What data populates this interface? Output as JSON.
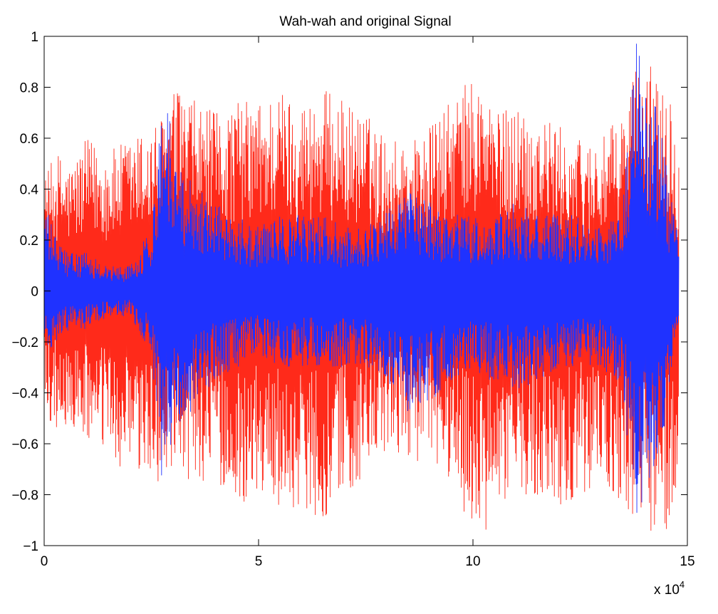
{
  "chart_data": {
    "type": "line",
    "title": "Wah-wah and original Signal",
    "xlabel": "",
    "ylabel": "",
    "x_multiplier_label": "x 10",
    "x_multiplier_exponent": "4",
    "xlim": [
      0,
      15
    ],
    "ylim": [
      -1,
      1
    ],
    "x_ticks": [
      0,
      5,
      10,
      15
    ],
    "x_tick_labels": [
      "0",
      "5",
      "10",
      "15"
    ],
    "y_ticks": [
      1,
      0.8,
      0.6,
      0.4,
      0.2,
      0,
      -0.2,
      -0.4,
      -0.6,
      -0.8,
      -1
    ],
    "y_tick_labels": [
      "1",
      "0.8",
      "0.6",
      "0.4",
      "0.2",
      "0",
      "−0.2",
      "−0.4",
      "−0.6",
      "−0.8",
      "−1"
    ],
    "grid": false,
    "legend": "none",
    "x_data_end": 14.8,
    "series": [
      {
        "color": "#ff2a1a",
        "envelope_x": [
          0,
          0.3,
          0.6,
          1.0,
          1.5,
          2.0,
          2.5,
          2.8,
          3.0,
          3.5,
          4.0,
          4.5,
          5.0,
          5.5,
          6.0,
          6.5,
          7.0,
          7.5,
          8.0,
          8.5,
          9.0,
          9.5,
          10.0,
          10.3,
          10.6,
          11.0,
          11.5,
          12.0,
          12.5,
          13.0,
          13.5,
          13.8,
          14.0,
          14.3,
          14.5,
          14.8
        ],
        "envelope_max": [
          0.45,
          0.55,
          0.5,
          0.6,
          0.55,
          0.6,
          0.65,
          0.7,
          0.8,
          0.75,
          0.7,
          0.75,
          0.75,
          0.8,
          0.75,
          0.8,
          0.75,
          0.7,
          0.6,
          0.6,
          0.65,
          0.75,
          0.85,
          0.8,
          0.7,
          0.75,
          0.7,
          0.65,
          0.6,
          0.6,
          0.7,
          0.9,
          0.85,
          0.95,
          0.9,
          0.55
        ],
        "envelope_min": [
          -0.5,
          -0.55,
          -0.55,
          -0.6,
          -0.65,
          -0.75,
          -0.75,
          -0.75,
          -0.8,
          -0.75,
          -0.75,
          -0.85,
          -0.8,
          -0.85,
          -0.85,
          -0.9,
          -0.8,
          -0.75,
          -0.65,
          -0.65,
          -0.7,
          -0.75,
          -0.95,
          -1.0,
          -0.85,
          -0.8,
          -0.8,
          -0.85,
          -0.8,
          -0.75,
          -0.85,
          -0.95,
          -0.9,
          -1.0,
          -0.95,
          -0.75
        ]
      },
      {
        "color": "#1f32ff",
        "envelope_x": [
          0,
          0.3,
          0.6,
          1.0,
          1.5,
          2.0,
          2.5,
          2.8,
          3.0,
          3.5,
          4.0,
          4.5,
          5.0,
          5.5,
          6.0,
          6.5,
          7.0,
          7.5,
          8.0,
          8.5,
          9.0,
          9.5,
          10.0,
          10.3,
          10.6,
          11.0,
          11.5,
          12.0,
          12.5,
          13.0,
          13.5,
          13.8,
          14.0,
          14.3,
          14.5,
          14.8
        ],
        "envelope_max": [
          0.35,
          0.2,
          0.15,
          0.15,
          0.1,
          0.1,
          0.25,
          0.9,
          0.55,
          0.45,
          0.35,
          0.3,
          0.25,
          0.3,
          0.3,
          0.3,
          0.25,
          0.25,
          0.35,
          0.4,
          0.35,
          0.3,
          0.3,
          0.25,
          0.3,
          0.35,
          0.3,
          0.3,
          0.3,
          0.25,
          0.35,
          1.0,
          0.85,
          0.75,
          0.5,
          0.2
        ],
        "envelope_min": [
          -0.25,
          -0.2,
          -0.15,
          -0.15,
          -0.1,
          -0.1,
          -0.25,
          -0.9,
          -0.6,
          -0.45,
          -0.35,
          -0.3,
          -0.25,
          -0.3,
          -0.3,
          -0.3,
          -0.3,
          -0.3,
          -0.35,
          -0.5,
          -0.45,
          -0.35,
          -0.3,
          -0.35,
          -0.35,
          -0.4,
          -0.35,
          -0.3,
          -0.3,
          -0.3,
          -0.4,
          -0.95,
          -0.8,
          -0.7,
          -0.5,
          -0.2
        ]
      }
    ]
  }
}
